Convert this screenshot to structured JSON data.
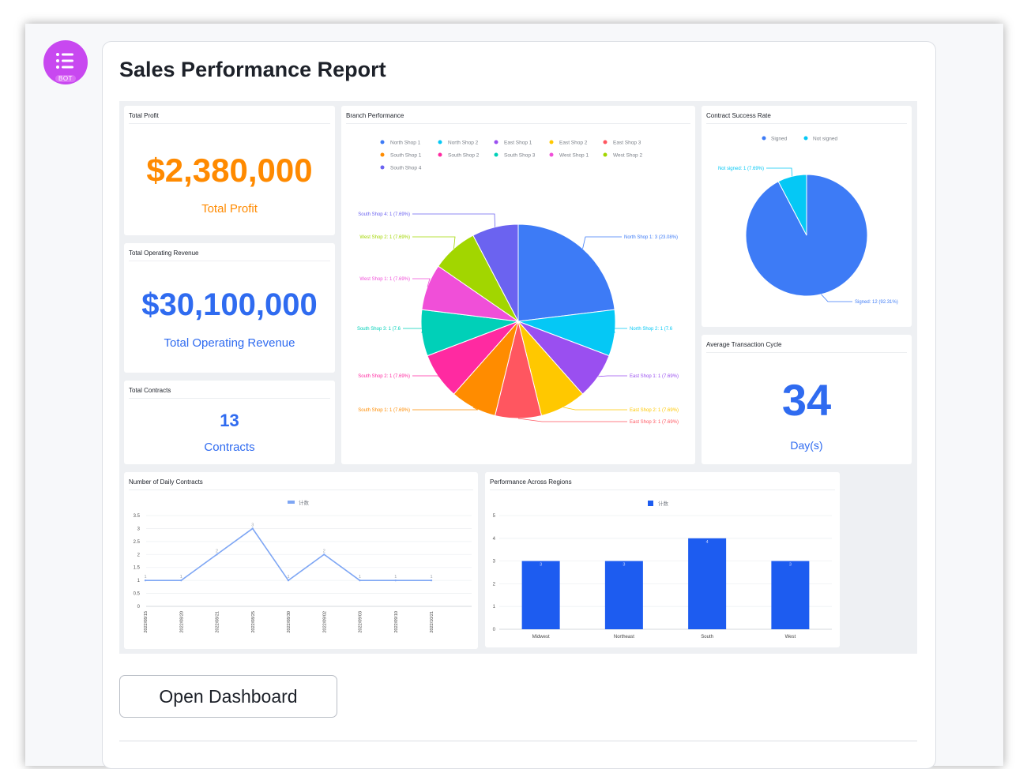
{
  "bot_badge": "BOT",
  "report": {
    "title": "Sales Performance Report",
    "open_button": "Open Dashboard"
  },
  "colors": {
    "orange": "#ff8a00",
    "blue": "#2f6bf0",
    "bar_blue": "#1d5cf0",
    "avatar": "#c848f0"
  },
  "kpis": {
    "total_profit": {
      "title": "Total Profit",
      "value": "$2,380,000",
      "label": "Total Profit"
    },
    "total_operating_revenue": {
      "title": "Total Operating Revenue",
      "value": "$30,100,000",
      "label": "Total Operating Revenue"
    },
    "total_contracts": {
      "title": "Total Contracts",
      "value": "13",
      "label": "Contracts"
    },
    "average_transaction_cycle": {
      "title": "Average Transaction Cycle",
      "value": "34",
      "label": "Day(s)"
    }
  },
  "chart_data": [
    {
      "id": "branch",
      "type": "pie",
      "title": "Branch Performance",
      "legend_position": "top",
      "slices": [
        {
          "name": "North Shop 1",
          "value": 3,
          "percent": "23.08%",
          "color": "#3d7bf6"
        },
        {
          "name": "North Shop 2",
          "value": 1,
          "percent": "7.69%",
          "color": "#05c8f5"
        },
        {
          "name": "East Shop 1",
          "value": 1,
          "percent": "7.69%",
          "color": "#9a4ff0"
        },
        {
          "name": "East Shop 2",
          "value": 1,
          "percent": "7.69%",
          "color": "#ffc800"
        },
        {
          "name": "East Shop 3",
          "value": 1,
          "percent": "7.69%",
          "color": "#ff5660"
        },
        {
          "name": "South Shop 1",
          "value": 1,
          "percent": "7.69%",
          "color": "#ff8c00"
        },
        {
          "name": "South Shop 2",
          "value": 1,
          "percent": "7.69%",
          "color": "#ff2aa1"
        },
        {
          "name": "South Shop 3",
          "value": 1,
          "percent": "7.69%",
          "color": "#00d0b8"
        },
        {
          "name": "West Shop 1",
          "value": 1,
          "percent": "7.69%",
          "color": "#f04fd8"
        },
        {
          "name": "West Shop 2",
          "value": 1,
          "percent": "7.69%",
          "color": "#a2d600"
        },
        {
          "name": "South Shop 4",
          "value": 1,
          "percent": "7.69%",
          "color": "#6b63f0"
        }
      ],
      "slice_labels": [
        "North Shop 1: 3 (23.08%)",
        "North Shop 2: 1 (7.6",
        "East Shop 1: 1 (7.69%)",
        "East Shop 2: 1 (7.69%)",
        "East Shop 3: 1 (7.69%)",
        "South Shop 1: 1 (7.69%)",
        "South Shop 2: 1 (7.69%)",
        "South Shop 3: 1 (7.6",
        "West Shop 1: 1 (7.69%)",
        "West Shop 2: 1 (7.69%)",
        "South Shop 4: 1 (7.69%)"
      ]
    },
    {
      "id": "contract",
      "type": "pie",
      "title": "Contract Success Rate",
      "legend_position": "top",
      "slices": [
        {
          "name": "Signed",
          "value": 12,
          "percent": "92.31%",
          "color": "#3d7bf6"
        },
        {
          "name": "Not signed",
          "value": 1,
          "percent": "7.69%",
          "color": "#05c8f5"
        }
      ],
      "slice_labels": [
        "Signed: 12 (92.31%)",
        "Not signed: 1 (7.69%)"
      ]
    },
    {
      "id": "daily",
      "type": "line",
      "title": "Number of Daily Contracts",
      "legend": "计数",
      "legend_position": "top",
      "x": [
        "2022/08/15",
        "2022/08/20",
        "2022/08/21",
        "2022/08/25",
        "2022/08/30",
        "2022/09/02",
        "2022/09/03",
        "2022/09/10",
        "2022/10/21"
      ],
      "y": [
        1,
        1,
        2,
        3,
        1,
        2,
        1,
        1,
        1
      ],
      "ylim": [
        0,
        3.5
      ],
      "yticks": [
        "0",
        "0.5",
        "1",
        "1.5",
        "2",
        "2.5",
        "3",
        "3.5"
      ],
      "grid": true,
      "color": "#7ea6f4"
    },
    {
      "id": "regions",
      "type": "bar",
      "title": "Performance Across Regions",
      "legend": "计数",
      "legend_position": "top",
      "categories": [
        "Midwest",
        "Northeast",
        "South",
        "West"
      ],
      "values": [
        3,
        3,
        4,
        3
      ],
      "ylim": [
        0,
        5
      ],
      "yticks": [
        "0",
        "1",
        "2",
        "3",
        "4",
        "5"
      ],
      "grid": true,
      "color": "#1d5cf0"
    }
  ]
}
